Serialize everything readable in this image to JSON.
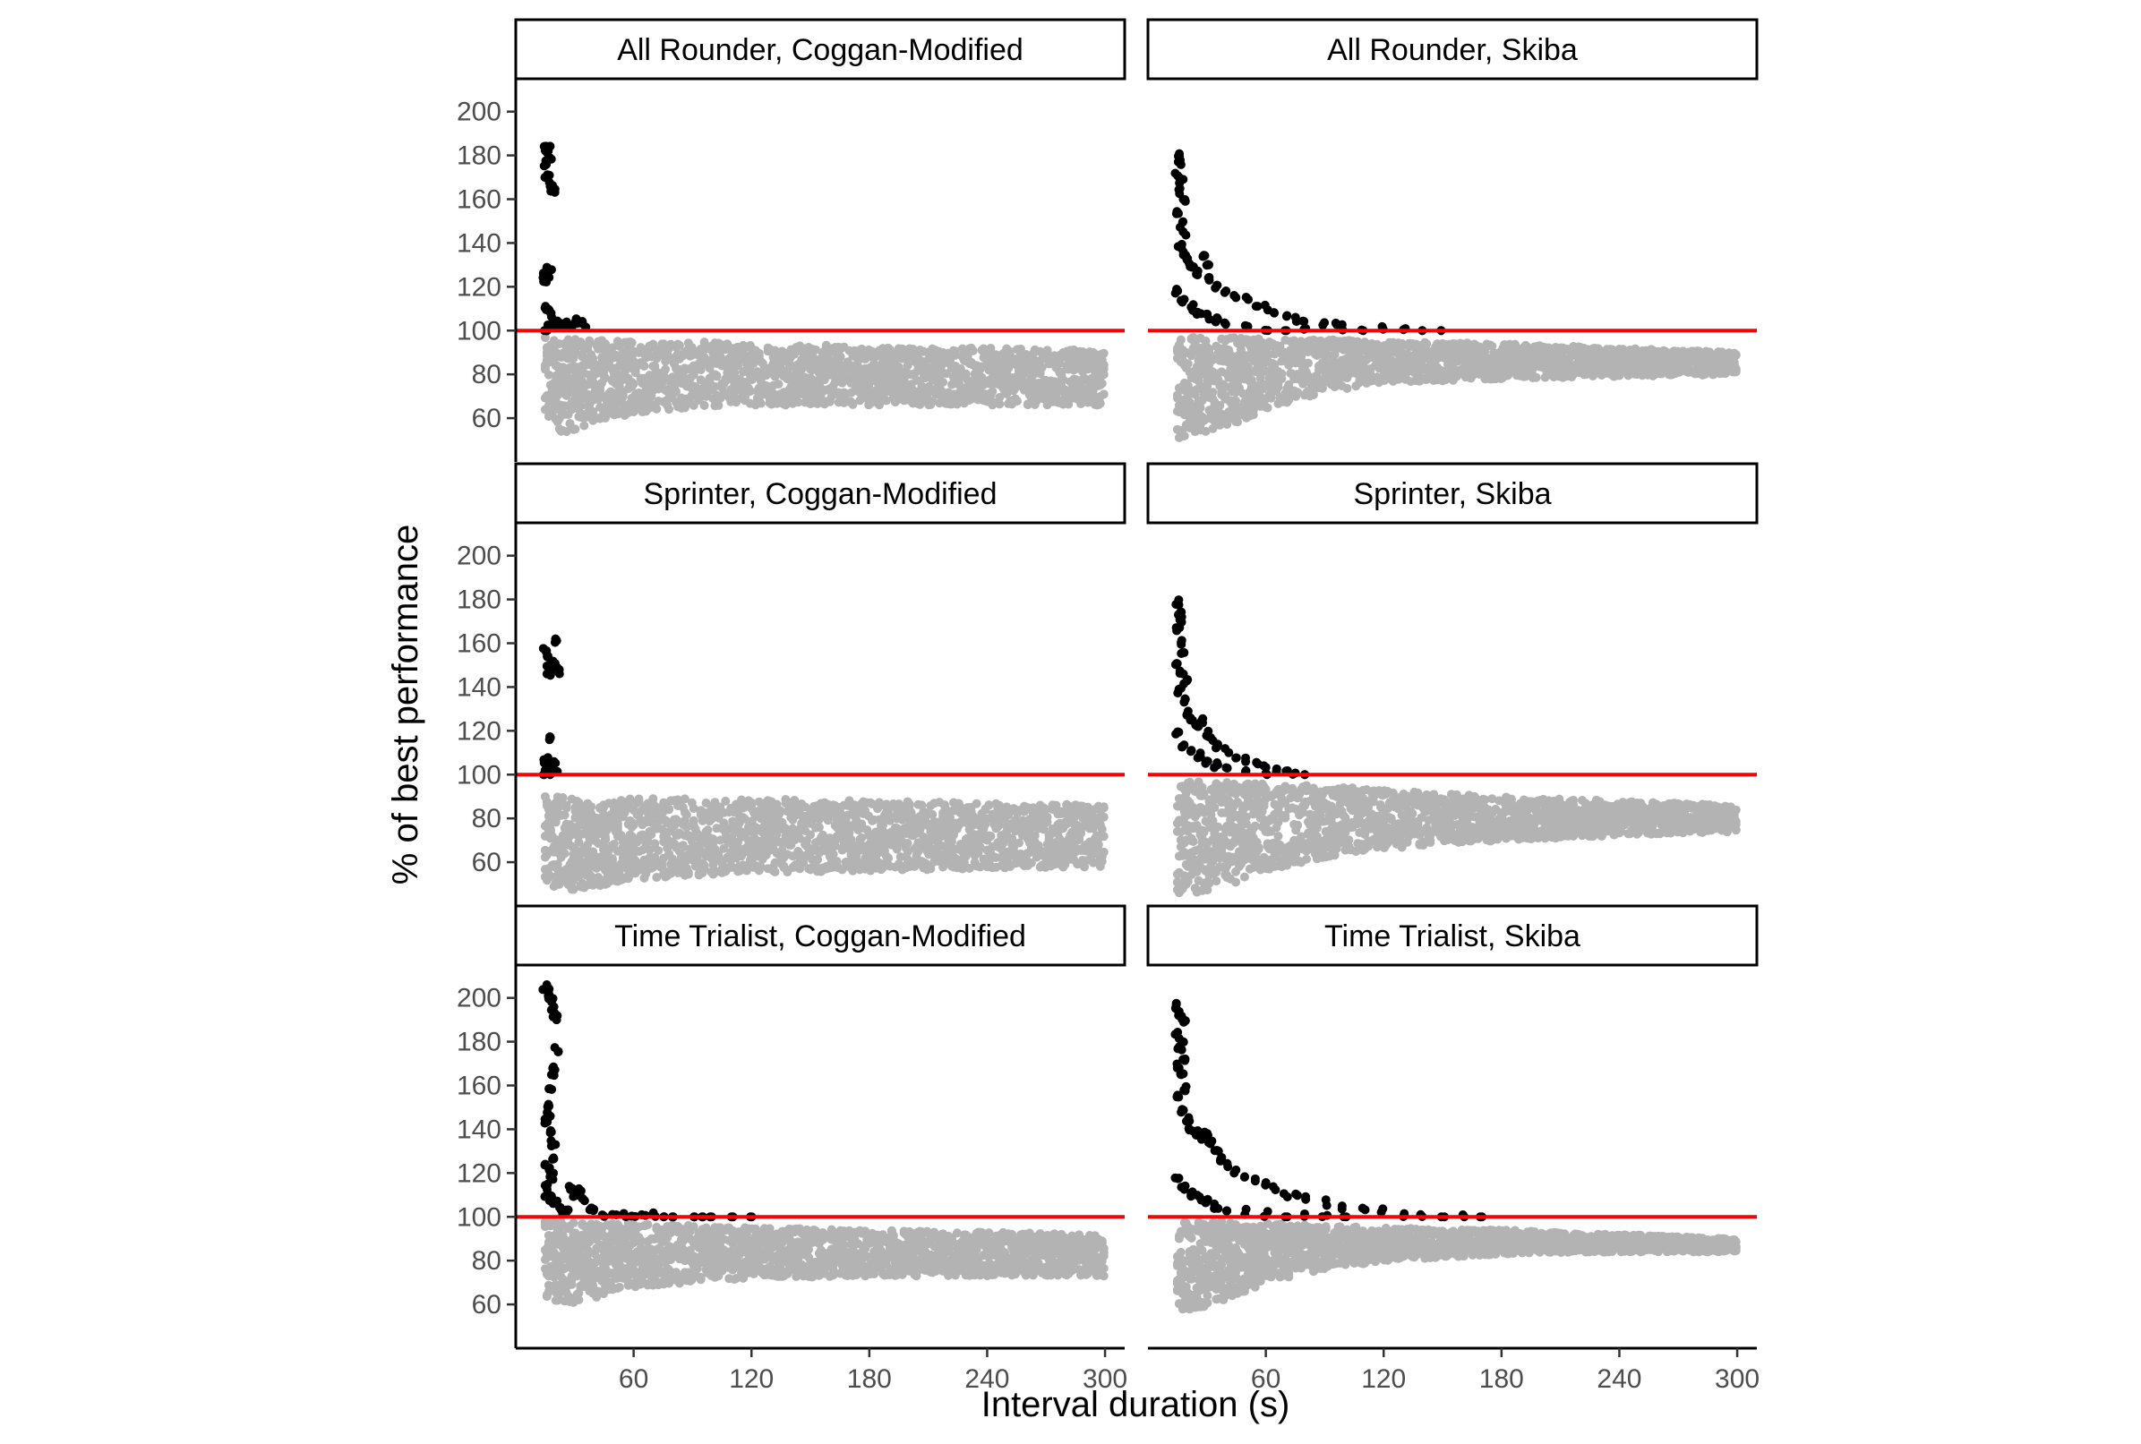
{
  "chart_data": {
    "type": "scatter",
    "xlabel": "Interval duration (s)",
    "ylabel": "% of best performance",
    "xlim": [
      0,
      310
    ],
    "ylim": [
      40,
      215
    ],
    "x_ticks": [
      60,
      120,
      180,
      240,
      300
    ],
    "y_ticks": [
      60,
      80,
      100,
      120,
      140,
      160,
      180,
      200
    ],
    "reference_line": {
      "y": 100,
      "color": "#ff0000"
    },
    "colors": {
      "above_reference": "#000000",
      "below_reference": "#b3b3b3"
    },
    "grid": false,
    "layout": {
      "rows": 3,
      "cols": 2
    },
    "panels": [
      {
        "title": "All Rounder, Coggan-Modified",
        "row": 0,
        "col": 0,
        "above_points": [
          [
            15,
            187
          ],
          [
            16,
            183
          ],
          [
            17,
            185
          ],
          [
            15,
            178
          ],
          [
            16,
            172
          ],
          [
            18,
            168
          ],
          [
            19,
            165
          ],
          [
            17,
            180
          ],
          [
            15,
            127
          ],
          [
            16,
            128
          ],
          [
            17,
            130
          ],
          [
            15,
            124
          ],
          [
            16,
            125
          ],
          [
            15,
            112
          ],
          [
            17,
            110
          ],
          [
            18,
            108
          ],
          [
            19,
            104
          ],
          [
            20,
            105
          ],
          [
            22,
            105
          ],
          [
            25,
            104
          ],
          [
            28,
            104
          ],
          [
            30,
            106
          ],
          [
            33,
            105
          ],
          [
            35,
            104
          ],
          [
            17,
            103
          ],
          [
            15,
            101
          ],
          [
            16,
            102
          ]
        ],
        "band": [
          [
            15,
            57,
            97
          ],
          [
            25,
            53,
            96
          ],
          [
            40,
            58,
            96
          ],
          [
            60,
            62,
            95
          ],
          [
            90,
            65,
            95
          ],
          [
            120,
            66,
            94
          ],
          [
            180,
            66,
            93
          ],
          [
            240,
            66,
            92
          ],
          [
            300,
            66,
            91
          ]
        ]
      },
      {
        "title": "All Rounder, Skiba",
        "row": 0,
        "col": 1,
        "above_points": [
          [
            15,
            181
          ],
          [
            16,
            178
          ],
          [
            15,
            172
          ],
          [
            17,
            170
          ],
          [
            16,
            165
          ],
          [
            18,
            162
          ],
          [
            15,
            155
          ],
          [
            17,
            150
          ],
          [
            19,
            146
          ],
          [
            16,
            140
          ],
          [
            18,
            136
          ],
          [
            20,
            133
          ],
          [
            22,
            130
          ],
          [
            25,
            128
          ],
          [
            28,
            136
          ],
          [
            30,
            132
          ],
          [
            32,
            125
          ],
          [
            35,
            122
          ],
          [
            40,
            120
          ],
          [
            45,
            118
          ],
          [
            50,
            116
          ],
          [
            55,
            114
          ],
          [
            60,
            112
          ],
          [
            65,
            110
          ],
          [
            70,
            108
          ],
          [
            75,
            107
          ],
          [
            80,
            106
          ],
          [
            90,
            105
          ],
          [
            95,
            104
          ],
          [
            100,
            103
          ],
          [
            110,
            102
          ],
          [
            120,
            102
          ],
          [
            130,
            101
          ],
          [
            140,
            101
          ],
          [
            150,
            100
          ],
          [
            15,
            120
          ],
          [
            18,
            115
          ],
          [
            22,
            112
          ],
          [
            26,
            110
          ],
          [
            30,
            108
          ],
          [
            35,
            106
          ],
          [
            40,
            104
          ],
          [
            50,
            103
          ],
          [
            60,
            102
          ],
          [
            70,
            101
          ],
          [
            80,
            101
          ]
        ],
        "band": [
          [
            15,
            50,
            97
          ],
          [
            25,
            53,
            97
          ],
          [
            40,
            56,
            97
          ],
          [
            60,
            64,
            96
          ],
          [
            90,
            72,
            96
          ],
          [
            120,
            76,
            95
          ],
          [
            180,
            78,
            94
          ],
          [
            240,
            79,
            92
          ],
          [
            300,
            80,
            90
          ]
        ]
      },
      {
        "title": "Sprinter, Coggan-Modified",
        "row": 1,
        "col": 0,
        "above_points": [
          [
            15,
            158
          ],
          [
            16,
            155
          ],
          [
            17,
            150
          ],
          [
            18,
            148
          ],
          [
            19,
            152
          ],
          [
            20,
            162
          ],
          [
            21,
            149
          ],
          [
            17,
            147
          ],
          [
            18,
            118
          ],
          [
            15,
            107
          ],
          [
            16,
            105
          ],
          [
            17,
            108
          ],
          [
            18,
            104
          ],
          [
            19,
            106
          ],
          [
            20,
            103
          ],
          [
            15,
            102
          ],
          [
            17,
            101
          ]
        ],
        "band": [
          [
            15,
            50,
            92
          ],
          [
            20,
            48,
            93
          ],
          [
            25,
            47,
            90
          ],
          [
            35,
            48,
            87
          ],
          [
            60,
            52,
            89
          ],
          [
            90,
            54,
            89
          ],
          [
            120,
            55,
            89
          ],
          [
            180,
            56,
            88
          ],
          [
            240,
            57,
            87
          ],
          [
            300,
            58,
            86
          ]
        ]
      },
      {
        "title": "Sprinter, Skiba",
        "row": 1,
        "col": 1,
        "above_points": [
          [
            15,
            180
          ],
          [
            16,
            176
          ],
          [
            17,
            172
          ],
          [
            15,
            168
          ],
          [
            16,
            162
          ],
          [
            18,
            158
          ],
          [
            15,
            152
          ],
          [
            17,
            148
          ],
          [
            19,
            144
          ],
          [
            16,
            140
          ],
          [
            18,
            135
          ],
          [
            20,
            130
          ],
          [
            22,
            126
          ],
          [
            25,
            124
          ],
          [
            28,
            126
          ],
          [
            30,
            120
          ],
          [
            32,
            118
          ],
          [
            35,
            115
          ],
          [
            40,
            112
          ],
          [
            45,
            110
          ],
          [
            50,
            108
          ],
          [
            55,
            106
          ],
          [
            60,
            105
          ],
          [
            65,
            104
          ],
          [
            70,
            103
          ],
          [
            75,
            102
          ],
          [
            80,
            101
          ],
          [
            15,
            120
          ],
          [
            18,
            115
          ],
          [
            22,
            112
          ],
          [
            26,
            110
          ],
          [
            30,
            108
          ],
          [
            35,
            106
          ],
          [
            40,
            104
          ],
          [
            50,
            103
          ],
          [
            60,
            102
          ]
        ],
        "band": [
          [
            15,
            45,
            97
          ],
          [
            25,
            46,
            97
          ],
          [
            40,
            49,
            97
          ],
          [
            60,
            56,
            96
          ],
          [
            90,
            62,
            95
          ],
          [
            120,
            66,
            93
          ],
          [
            180,
            70,
            90
          ],
          [
            240,
            72,
            88
          ],
          [
            300,
            74,
            86
          ]
        ]
      },
      {
        "title": "Time Trialist, Coggan-Modified",
        "row": 2,
        "col": 0,
        "above_points": [
          [
            15,
            206
          ],
          [
            16,
            203
          ],
          [
            17,
            205
          ],
          [
            18,
            200
          ],
          [
            19,
            196
          ],
          [
            20,
            192
          ],
          [
            21,
            178
          ],
          [
            20,
            170
          ],
          [
            19,
            165
          ],
          [
            18,
            160
          ],
          [
            16,
            152
          ],
          [
            17,
            148
          ],
          [
            15,
            145
          ],
          [
            18,
            140
          ],
          [
            19,
            135
          ],
          [
            20,
            128
          ],
          [
            16,
            125
          ],
          [
            17,
            122
          ],
          [
            18,
            120
          ],
          [
            15,
            115
          ],
          [
            16,
            112
          ],
          [
            18,
            110
          ],
          [
            20,
            108
          ],
          [
            22,
            106
          ],
          [
            24,
            104
          ],
          [
            26,
            105
          ],
          [
            28,
            115
          ],
          [
            30,
            112
          ],
          [
            32,
            113
          ],
          [
            35,
            110
          ],
          [
            38,
            105
          ],
          [
            40,
            104
          ],
          [
            45,
            103
          ],
          [
            50,
            103
          ],
          [
            55,
            102
          ],
          [
            60,
            102
          ],
          [
            65,
            101
          ],
          [
            70,
            102
          ],
          [
            75,
            101
          ],
          [
            80,
            101
          ],
          [
            90,
            101
          ],
          [
            95,
            100
          ],
          [
            100,
            101
          ],
          [
            110,
            100
          ],
          [
            120,
            100
          ]
        ],
        "band": [
          [
            15,
            62,
            98
          ],
          [
            25,
            60,
            98
          ],
          [
            40,
            63,
            97
          ],
          [
            60,
            68,
            97
          ],
          [
            90,
            70,
            96
          ],
          [
            120,
            72,
            95
          ],
          [
            180,
            73,
            94
          ],
          [
            240,
            73,
            93
          ],
          [
            300,
            73,
            92
          ]
        ]
      },
      {
        "title": "Time Trialist, Skiba",
        "row": 2,
        "col": 1,
        "above_points": [
          [
            15,
            198
          ],
          [
            16,
            195
          ],
          [
            17,
            192
          ],
          [
            18,
            190
          ],
          [
            15,
            185
          ],
          [
            17,
            182
          ],
          [
            16,
            178
          ],
          [
            18,
            174
          ],
          [
            15,
            170
          ],
          [
            17,
            166
          ],
          [
            19,
            160
          ],
          [
            16,
            156
          ],
          [
            18,
            150
          ],
          [
            20,
            146
          ],
          [
            22,
            142
          ],
          [
            25,
            140
          ],
          [
            28,
            138
          ],
          [
            30,
            140
          ],
          [
            32,
            135
          ],
          [
            35,
            132
          ],
          [
            38,
            128
          ],
          [
            40,
            125
          ],
          [
            45,
            122
          ],
          [
            50,
            120
          ],
          [
            55,
            118
          ],
          [
            60,
            116
          ],
          [
            65,
            114
          ],
          [
            70,
            112
          ],
          [
            75,
            111
          ],
          [
            80,
            110
          ],
          [
            90,
            108
          ],
          [
            100,
            106
          ],
          [
            110,
            105
          ],
          [
            120,
            104
          ],
          [
            130,
            103
          ],
          [
            140,
            102
          ],
          [
            150,
            101
          ],
          [
            160,
            101
          ],
          [
            170,
            100
          ],
          [
            15,
            120
          ],
          [
            18,
            115
          ],
          [
            22,
            112
          ],
          [
            26,
            110
          ],
          [
            30,
            108
          ],
          [
            35,
            106
          ],
          [
            40,
            105
          ],
          [
            50,
            104
          ],
          [
            60,
            103
          ],
          [
            70,
            102
          ],
          [
            80,
            102
          ],
          [
            90,
            101
          ],
          [
            100,
            101
          ]
        ],
        "band": [
          [
            15,
            57,
            98
          ],
          [
            25,
            58,
            98
          ],
          [
            40,
            62,
            98
          ],
          [
            60,
            70,
            97
          ],
          [
            90,
            76,
            96
          ],
          [
            120,
            80,
            95
          ],
          [
            180,
            83,
            94
          ],
          [
            240,
            84,
            92
          ],
          [
            300,
            84,
            90
          ]
        ]
      }
    ]
  }
}
